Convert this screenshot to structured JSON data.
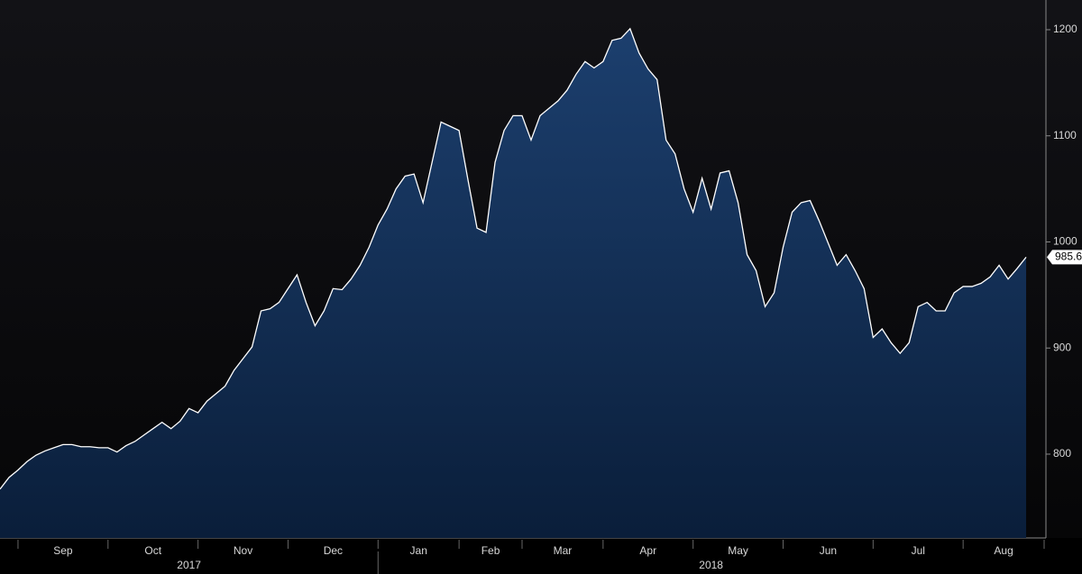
{
  "chart_data": {
    "type": "area",
    "categories": [
      null,
      null,
      "Sep",
      null,
      null,
      null,
      null,
      null,
      null,
      null,
      null,
      null,
      "Oct",
      null,
      null,
      null,
      null,
      null,
      null,
      null,
      null,
      null,
      "Nov",
      null,
      null,
      null,
      null,
      null,
      null,
      null,
      null,
      null,
      "Dec",
      null,
      null,
      null,
      null,
      null,
      null,
      null,
      null,
      null,
      "Jan",
      null,
      null,
      null,
      null,
      null,
      null,
      null,
      null,
      "Feb",
      null,
      null,
      null,
      null,
      null,
      null,
      "Mar",
      null,
      null,
      null,
      null,
      null,
      null,
      null,
      null,
      "Apr",
      null,
      null,
      null,
      null,
      null,
      null,
      null,
      null,
      null,
      "May",
      null,
      null,
      null,
      null,
      null,
      null,
      null,
      null,
      null,
      "Jun",
      null,
      null,
      null,
      null,
      null,
      null,
      null,
      null,
      null,
      "Jul",
      null,
      null,
      null,
      null,
      null,
      null,
      null,
      null,
      null,
      "Aug",
      null,
      null,
      null,
      null,
      null,
      null,
      null,
      null,
      null
    ],
    "values": [
      767,
      778,
      785,
      793,
      799,
      803,
      806,
      809,
      809,
      807,
      807,
      806,
      806,
      802,
      808,
      812,
      818,
      824,
      830,
      824,
      831,
      843,
      839,
      850,
      857,
      864,
      879,
      890,
      901,
      935,
      937,
      943,
      956,
      969,
      943,
      921,
      935,
      956,
      955,
      965,
      978,
      995,
      1016,
      1031,
      1050,
      1062,
      1064,
      1037,
      1075,
      1113,
      1109,
      1105,
      1058,
      1013,
      1009,
      1075,
      1105,
      1119,
      1119,
      1096,
      1119,
      1126,
      1133,
      1143,
      1158,
      1170,
      1164,
      1170,
      1190,
      1192,
      1201,
      1178,
      1163,
      1153,
      1096,
      1083,
      1050,
      1028,
      1060,
      1031,
      1065,
      1067,
      1037,
      988,
      973,
      939,
      952,
      995,
      1028,
      1037,
      1039,
      1020,
      999,
      978,
      988,
      973,
      956,
      910,
      918,
      905,
      895,
      905,
      939,
      943,
      935,
      935,
      952,
      958,
      958,
      961,
      967,
      978,
      965,
      975,
      985.64,
      null,
      null
    ],
    "x_groups": [
      {
        "label": "2017",
        "start": 0
      },
      {
        "label": "2018",
        "start": 42
      }
    ],
    "color": "#ffffff",
    "area_color": "#143561",
    "ylim": [
      721,
      1228
    ],
    "yticks": [
      800,
      900,
      1000,
      1100,
      1200
    ]
  }
}
